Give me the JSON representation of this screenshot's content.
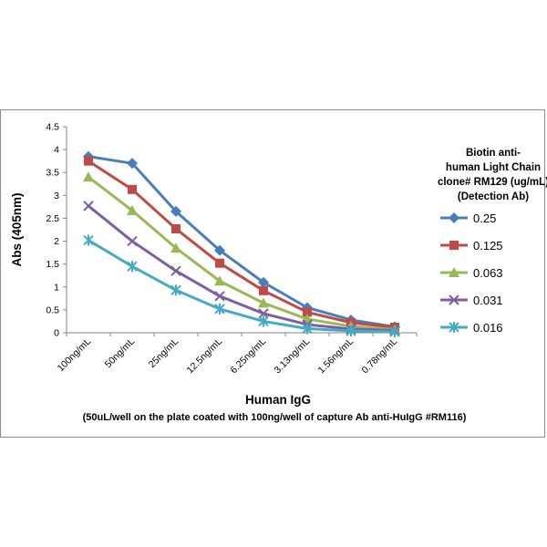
{
  "chart_data": {
    "type": "line",
    "title": "",
    "xlabel": "Human IgG",
    "xlabel_note": "(50uL/well on the plate coated with 100ng/well of capture Ab anti-HuIgG #RM116)",
    "ylabel": "Abs (405nm)",
    "ylim": [
      0,
      4.5
    ],
    "yticks": [
      "0",
      "0.5",
      "1",
      "1.5",
      "2",
      "2.5",
      "3",
      "3.5",
      "4",
      "4.5"
    ],
    "grid": false,
    "legend_position": "right",
    "legend_title": [
      "Biotin anti-",
      "human Light Chain",
      "clone# RM129 (ug/mL)",
      "(Detection Ab)"
    ],
    "categories": [
      "100ng/mL",
      "50ng/mL",
      "25ng/mL",
      "12.5ng/mL",
      "6.25ng/mL",
      "3.13ng/mL",
      "1.56ng/mL",
      "0.78ng/mL"
    ],
    "series": [
      {
        "name": "0.25",
        "color": "#4a7ebb",
        "marker": "diamond",
        "values": [
          3.85,
          3.7,
          2.65,
          1.8,
          1.1,
          0.55,
          0.28,
          0.13
        ]
      },
      {
        "name": "0.125",
        "color": "#be4b48",
        "marker": "square",
        "values": [
          3.75,
          3.13,
          2.27,
          1.52,
          0.92,
          0.45,
          0.22,
          0.12
        ]
      },
      {
        "name": "0.063",
        "color": "#98b954",
        "marker": "triangle",
        "values": [
          3.4,
          2.67,
          1.85,
          1.13,
          0.65,
          0.3,
          0.14,
          0.07
        ]
      },
      {
        "name": "0.031",
        "color": "#7d5fa0",
        "marker": "x",
        "values": [
          2.77,
          2.0,
          1.35,
          0.8,
          0.42,
          0.18,
          0.08,
          0.05
        ]
      },
      {
        "name": "0.016",
        "color": "#46aac5",
        "marker": "star",
        "values": [
          2.02,
          1.45,
          0.93,
          0.52,
          0.25,
          0.09,
          0.04,
          0.02
        ]
      }
    ]
  }
}
